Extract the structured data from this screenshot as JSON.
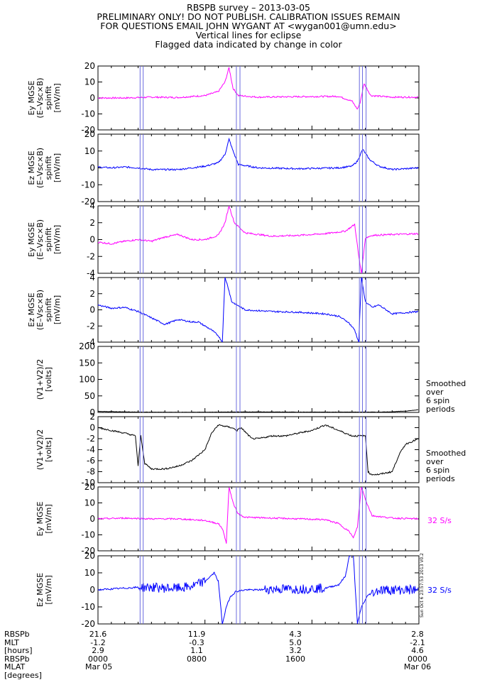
{
  "header": {
    "line1": "RBSPB survey – 2013-03-05",
    "line2": "PRELIMINARY ONLY! DO NOT PUBLISH. CALIBRATION ISSUES REMAIN",
    "line3": "FOR QUESTIONS EMAIL JOHN WYGANT AT <wygan001@umn.edu>",
    "line4": "Vertical lines for eclipse",
    "line5": "Flagged data indicated by change in color"
  },
  "colors": {
    "magenta": "#ff00ff",
    "blue": "#0000ff",
    "black": "#000000",
    "eclipse": "#6a6adf"
  },
  "eclipse_lines_hours": [
    3.15,
    3.38,
    10.35,
    10.62,
    19.55,
    19.78,
    20.05
  ],
  "side_notes": {
    "smoothed_5": [
      "Smoothed",
      "over",
      "6 spin",
      "periods"
    ],
    "smoothed_6": [
      "Smoothed",
      "over",
      "6 spin",
      "periods"
    ],
    "rate_7": "32 S/s",
    "rate_8": "32 S/s"
  },
  "stamp": "Sun Oct  6 23:57:53 2013 V0.2",
  "footer": {
    "row_labels": [
      "RBSPb",
      "MLT",
      "[hours]",
      "RBSPb",
      "MLAT",
      "[degrees]"
    ],
    "columns": [
      {
        "values": [
          "21.6",
          "-1.2",
          "2.9",
          "0000",
          "Mar 05"
        ]
      },
      {
        "values": [
          "11.9",
          "-0.3",
          "1.1",
          "0800",
          ""
        ]
      },
      {
        "values": [
          "4.3",
          "5.0",
          "3.2",
          "1600",
          ""
        ]
      },
      {
        "values": [
          "2.8",
          "-2.1",
          "4.6",
          "0000",
          "Mar 06"
        ]
      }
    ]
  },
  "chart_data": [
    {
      "type": "line",
      "ylabel": "Ey MGSE\n(E–Vsc×B)\nspinfit\n[mV/m]",
      "ylim": [
        -20,
        20
      ],
      "yticks": [
        -20,
        -10,
        0,
        10,
        20
      ],
      "color": "magenta",
      "series": [
        {
          "x": [
            0,
            2,
            4,
            6,
            8,
            9.0,
            9.5,
            9.8,
            10.1,
            10.5,
            12,
            15,
            18,
            19.0,
            19.4,
            19.6,
            19.9,
            20.4,
            22,
            24
          ],
          "y": [
            0,
            0,
            0.5,
            0.3,
            1.5,
            4,
            10,
            19,
            6,
            1.5,
            0.5,
            0.8,
            1,
            -2,
            -7,
            -3,
            9,
            1.5,
            0.5,
            0.5
          ]
        }
      ]
    },
    {
      "type": "line",
      "ylabel": "Ez MGSE\n(E–Vsc×B)\nspinfit\n[mV/m]",
      "ylim": [
        -20,
        20
      ],
      "yticks": [
        -20,
        -10,
        0,
        10,
        20
      ],
      "color": "blue",
      "series": [
        {
          "x": [
            0,
            1,
            2,
            3,
            4,
            6,
            8,
            9.0,
            9.5,
            9.8,
            10.1,
            10.5,
            12,
            15,
            18,
            19.0,
            19.4,
            19.8,
            20.3,
            21,
            22,
            24
          ],
          "y": [
            0.5,
            0,
            0.5,
            0,
            -1,
            -1,
            1,
            3,
            8,
            17,
            10,
            2,
            0,
            -0.5,
            0,
            1,
            4,
            11,
            5,
            1,
            -1,
            0
          ]
        }
      ]
    },
    {
      "type": "line",
      "ylabel": "Ey MGSE\n(E–Vsc×B)\nspinfit\n[mV/m]",
      "ylim": [
        -4,
        4
      ],
      "yticks": [
        -4,
        -2,
        0,
        2,
        4
      ],
      "color": "magenta",
      "series": [
        {
          "x": [
            0,
            1,
            2,
            3,
            4,
            5,
            6,
            7,
            8,
            9,
            9.5,
            9.8,
            10.2,
            11,
            13,
            15,
            17,
            18.5,
            19.2,
            19.5,
            19.7,
            20,
            20.5,
            22,
            24
          ],
          "y": [
            -0.3,
            -0.5,
            -0.2,
            0,
            -0.2,
            0.3,
            0.6,
            0,
            0,
            0.5,
            2,
            4,
            2,
            0.8,
            0.4,
            0.5,
            0.7,
            1.0,
            1.8,
            -2,
            -4,
            0.2,
            0.5,
            0.6,
            0.7
          ]
        }
      ]
    },
    {
      "type": "line",
      "ylabel": "Ez MGSE\n(E–Vsc×B)\nspinfit\n[mV/m]",
      "ylim": [
        -4,
        4
      ],
      "yticks": [
        -4,
        -2,
        0,
        2,
        4
      ],
      "color": "blue",
      "series": [
        {
          "x": [
            0,
            1,
            2,
            3,
            4,
            5,
            6,
            7,
            7.5,
            8,
            8.5,
            9.0,
            9.3,
            9.5,
            9.7,
            10,
            11,
            12,
            13,
            15,
            17,
            18,
            18.7,
            19.2,
            19.5,
            19.7,
            20,
            20.5,
            21,
            22,
            24
          ],
          "y": [
            0.6,
            0.2,
            0.3,
            -0.2,
            -1,
            -1.8,
            -1.2,
            -1.5,
            -1.5,
            -2.0,
            -2.5,
            -3.2,
            -4,
            4,
            3,
            1.0,
            0,
            -0.1,
            -0.2,
            -0.3,
            -0.5,
            -0.8,
            -1.5,
            -2.5,
            -4,
            4,
            1.0,
            0.3,
            0.6,
            -0.5,
            -0.2
          ]
        }
      ]
    },
    {
      "type": "line",
      "ylabel": "(V1+V2)/2\n[volts]",
      "ylim": [
        0,
        200
      ],
      "yticks": [
        0,
        50,
        100,
        150,
        200
      ],
      "color": "black",
      "series": [
        {
          "x": [
            0,
            3,
            6,
            9,
            12,
            15,
            18,
            21,
            22,
            23,
            24
          ],
          "y": [
            3,
            1,
            0.5,
            1,
            1.5,
            1,
            1,
            1,
            2,
            4,
            8
          ]
        }
      ]
    },
    {
      "type": "line",
      "ylabel": "(V1+V2)/2\n[volts]",
      "ylim": [
        -10,
        2
      ],
      "yticks": [
        -10,
        -8,
        -6,
        -4,
        -2,
        0,
        2
      ],
      "color": "black",
      "series": [
        {
          "x": [
            0,
            1,
            2,
            2.8,
            3.0,
            3.2,
            3.5,
            4,
            5,
            6,
            7,
            8,
            8.5,
            9,
            10,
            10.4,
            10.7,
            11.5,
            12,
            13,
            14,
            16,
            17,
            18,
            19,
            20,
            20.2,
            20.4,
            20.6,
            21,
            22,
            22.5,
            23,
            24
          ],
          "y": [
            0,
            -0.5,
            -1,
            -1.5,
            -7,
            -1.5,
            -6.5,
            -7.5,
            -7.5,
            -7,
            -6,
            -4,
            -1,
            0.5,
            0,
            -0.5,
            0,
            -2,
            -2,
            -1.5,
            -1.5,
            -0.5,
            0.5,
            -0.5,
            -1.5,
            -1.5,
            -8,
            -8.5,
            -8.5,
            -8.5,
            -8,
            -5,
            -3,
            -2
          ]
        }
      ]
    },
    {
      "type": "line",
      "ylabel": "Ey MGSE\n[mV/m]",
      "ylim": [
        -20,
        20
      ],
      "yticks": [
        -20,
        -10,
        0,
        10,
        20
      ],
      "color": "magenta",
      "side": "32 S/s",
      "series": [
        {
          "x": [
            0,
            2,
            4,
            6,
            7,
            8,
            9.0,
            9.3,
            9.6,
            9.8,
            10.1,
            10.5,
            11,
            13,
            15,
            17,
            18,
            18.8,
            19.1,
            19.4,
            19.7,
            20.1,
            20.5,
            22,
            24
          ],
          "y": [
            0,
            0.5,
            0,
            0,
            -0.5,
            -1,
            -3,
            -6,
            -15,
            20,
            10,
            3,
            1,
            0.5,
            0,
            -0.5,
            -3,
            -8,
            -12,
            -5,
            20,
            10,
            2,
            0.5,
            0
          ]
        }
      ]
    },
    {
      "type": "line",
      "ylabel": "Ez MGSE\n[mV/m]",
      "ylim": [
        -20,
        20
      ],
      "yticks": [
        -20,
        -10,
        0,
        10,
        20
      ],
      "color": "blue",
      "side": "32 S/s",
      "series": [
        {
          "x": [
            0,
            1,
            2,
            3,
            4,
            5,
            6,
            7,
            8,
            8.7,
            9.0,
            9.3,
            9.6,
            9.9,
            10.3,
            11,
            12,
            13,
            15,
            17,
            18,
            18.5,
            18.8,
            19.1,
            19.4,
            19.7,
            20.2,
            21,
            22,
            23,
            24
          ],
          "y": [
            0,
            0.5,
            1,
            1.5,
            1.5,
            1,
            1,
            2,
            5,
            10,
            5,
            -20,
            -10,
            -4,
            -1,
            0,
            0,
            0.5,
            0.5,
            1,
            3,
            8,
            20,
            20,
            -20,
            -10,
            -3,
            0,
            0,
            0,
            0
          ]
        }
      ]
    }
  ]
}
